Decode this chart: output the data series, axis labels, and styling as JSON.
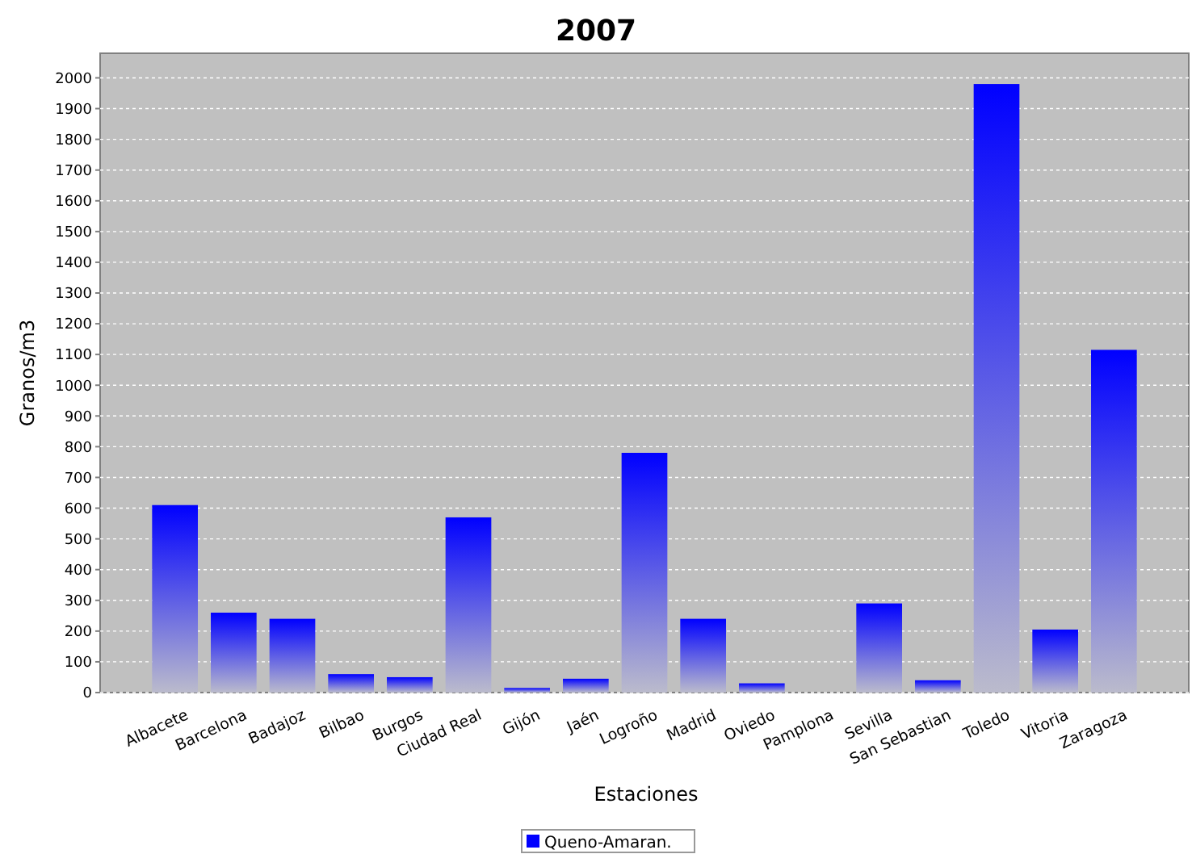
{
  "chart_data": {
    "type": "bar",
    "title": "2007",
    "xlabel": "Estaciones",
    "ylabel": "Granos/m3",
    "categories": [
      "Albacete",
      "Barcelona",
      "Badajoz",
      "Bilbao",
      "Burgos",
      "Ciudad Real",
      "Gijón",
      "Jaén",
      "Logroño",
      "Madrid",
      "Oviedo",
      "Pamplona",
      "Sevilla",
      "San Sebastian",
      "Toledo",
      "Vitoria",
      "Zaragoza"
    ],
    "series": [
      {
        "name": "Queno-Amaran.",
        "color": "#0000ff",
        "values": [
          610,
          260,
          240,
          60,
          50,
          570,
          15,
          45,
          780,
          240,
          30,
          0,
          290,
          40,
          1980,
          205,
          1115
        ]
      }
    ],
    "ylim": [
      0,
      2080
    ],
    "yticks": [
      0,
      100,
      200,
      300,
      400,
      500,
      600,
      700,
      800,
      900,
      1000,
      1100,
      1200,
      1300,
      1400,
      1500,
      1600,
      1700,
      1800,
      1900,
      2000
    ],
    "grid": "y",
    "legend": "bottom"
  }
}
